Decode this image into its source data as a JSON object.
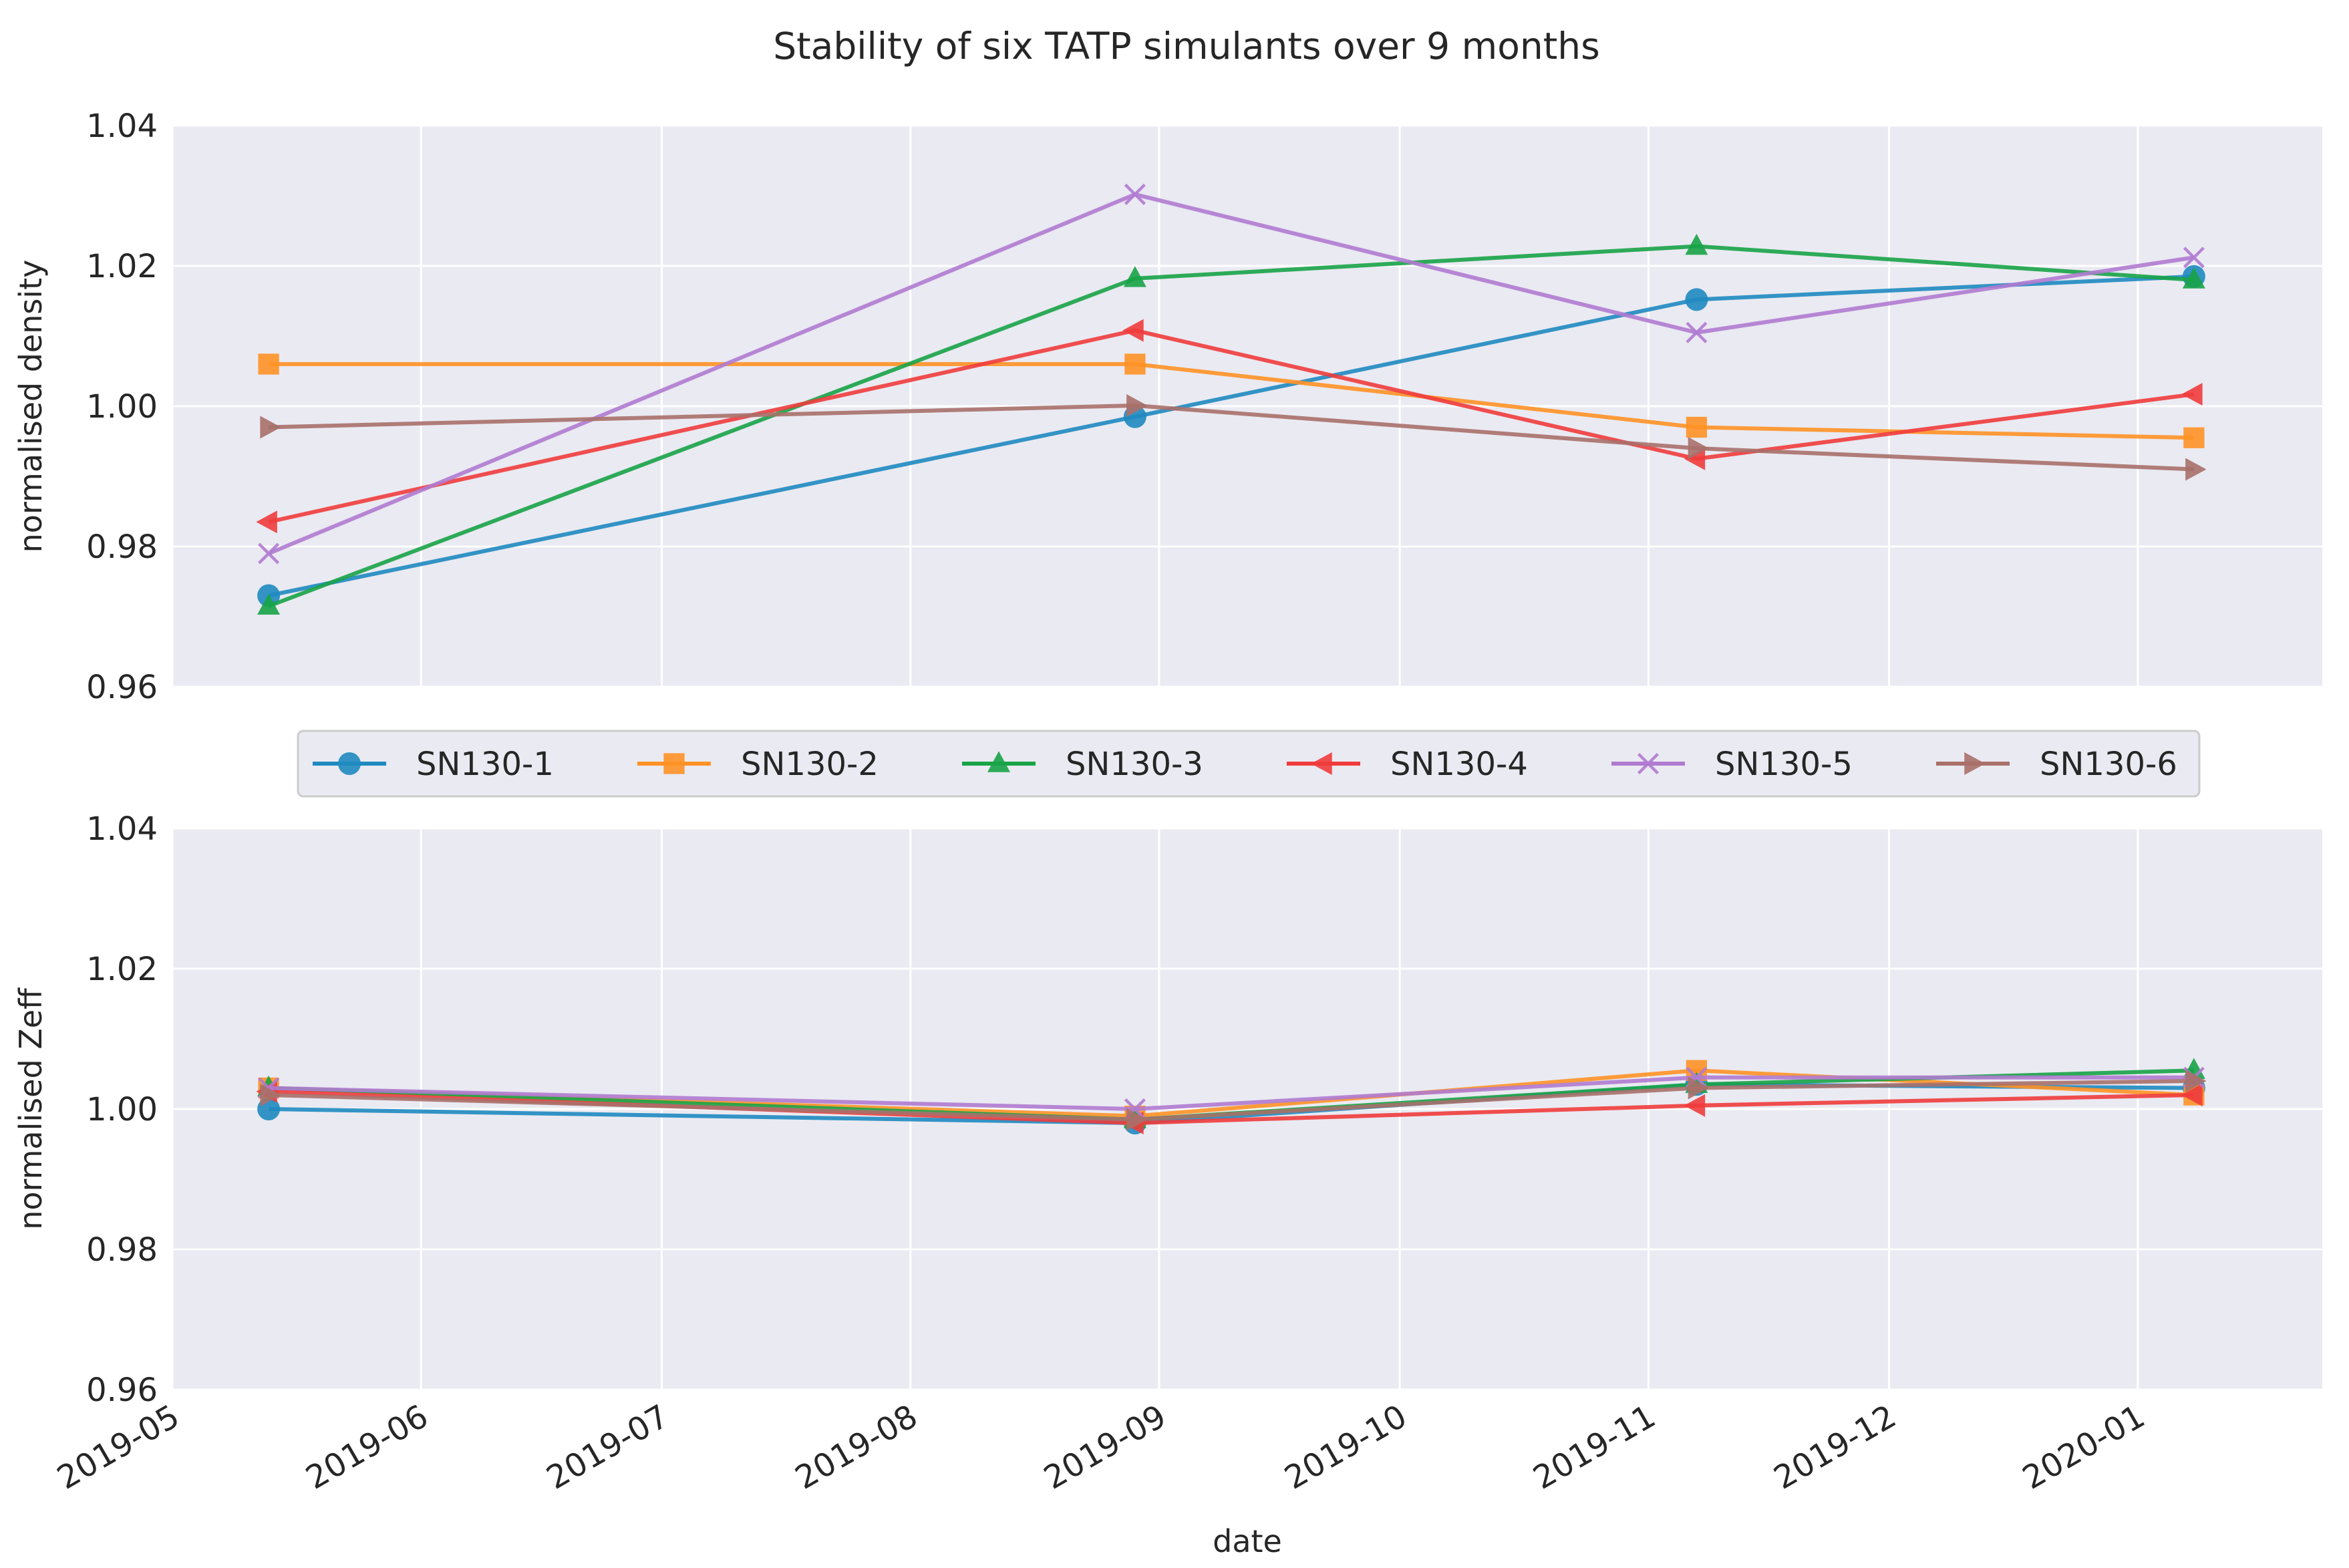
{
  "figure_title": "Stability of six TATP simulants over 9 months",
  "colors": {
    "panel_bg": "#eaeaf2",
    "grid": "#ffffff",
    "text": "#262626",
    "series": [
      "#1f8ac0",
      "#ff9226",
      "#18a347",
      "#f03c3c",
      "#b07bd0",
      "#a9706a"
    ]
  },
  "legend": {
    "entries": [
      {
        "label": "SN130-1",
        "marker": "circle"
      },
      {
        "label": "SN130-2",
        "marker": "square"
      },
      {
        "label": "SN130-3",
        "marker": "triangle-up"
      },
      {
        "label": "SN130-4",
        "marker": "triangle-left"
      },
      {
        "label": "SN130-5",
        "marker": "x"
      },
      {
        "label": "SN130-6",
        "marker": "triangle-right"
      }
    ]
  },
  "chart_data": [
    {
      "type": "line",
      "title": "Stability of six TATP simulants over 9 months",
      "xlabel": "",
      "ylabel": "normalised density",
      "x": [
        "2019-05-13",
        "2019-08-29",
        "2019-11-07",
        "2020-01-08"
      ],
      "ylim": [
        0.96,
        1.04
      ],
      "yticks": [
        "0.96",
        "0.98",
        "1.00",
        "1.02",
        "1.04"
      ],
      "grid": true,
      "series": [
        {
          "name": "SN130-1",
          "values": [
            0.973,
            0.9985,
            1.0152,
            1.0185
          ]
        },
        {
          "name": "SN130-2",
          "values": [
            1.006,
            1.006,
            0.997,
            0.9955
          ]
        },
        {
          "name": "SN130-3",
          "values": [
            0.9715,
            1.0182,
            1.0228,
            1.018
          ]
        },
        {
          "name": "SN130-4",
          "values": [
            0.9835,
            1.0108,
            0.9925,
            1.0017
          ]
        },
        {
          "name": "SN130-5",
          "values": [
            0.979,
            1.0302,
            1.0105,
            1.0212
          ]
        },
        {
          "name": "SN130-6",
          "values": [
            0.997,
            1.0001,
            0.994,
            0.991
          ]
        }
      ]
    },
    {
      "type": "line",
      "title": "",
      "xlabel": "date",
      "ylabel": "normalised Zeff",
      "x": [
        "2019-05-13",
        "2019-08-29",
        "2019-11-07",
        "2020-01-08"
      ],
      "xlim": [
        "2019-05-01",
        "2020-01-24"
      ],
      "xticks": [
        "2019-05",
        "2019-06",
        "2019-07",
        "2019-08",
        "2019-09",
        "2019-10",
        "2019-11",
        "2019-12",
        "2020-01"
      ],
      "ylim": [
        0.96,
        1.04
      ],
      "yticks": [
        "0.96",
        "0.98",
        "1.00",
        "1.02",
        "1.04"
      ],
      "grid": true,
      "series": [
        {
          "name": "SN130-1",
          "values": [
            1.0,
            0.998,
            1.0035,
            1.003
          ]
        },
        {
          "name": "SN130-2",
          "values": [
            1.003,
            0.999,
            1.0055,
            1.002
          ]
        },
        {
          "name": "SN130-3",
          "values": [
            1.003,
            0.9985,
            1.0035,
            1.0055
          ]
        },
        {
          "name": "SN130-4",
          "values": [
            1.0025,
            0.998,
            1.0005,
            1.002
          ]
        },
        {
          "name": "SN130-5",
          "values": [
            1.003,
            1.0,
            1.0045,
            1.0045
          ]
        },
        {
          "name": "SN130-6",
          "values": [
            1.002,
            0.9985,
            1.003,
            1.004
          ]
        }
      ]
    }
  ]
}
